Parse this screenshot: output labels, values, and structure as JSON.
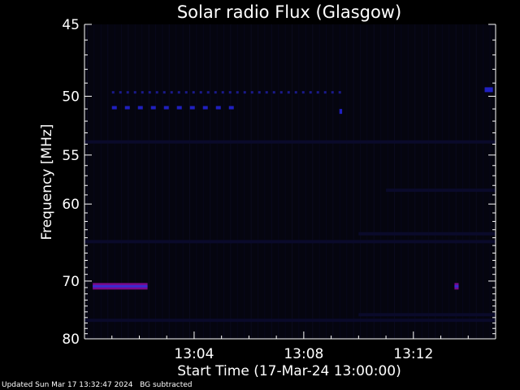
{
  "page": {
    "footer_updated": "Updated Sun Mar 17 13:32:47 2024",
    "footer_note": "BG subtracted"
  },
  "chart_data": {
    "type": "heatmap",
    "title": "Solar radio Flux (Glasgow)",
    "xlabel": "Start Time (17-Mar-24 13:00:00)",
    "ylabel": "Frequency [MHz]",
    "x_range_minutes": [
      0,
      15
    ],
    "x_ticks": [
      {
        "label": "13:04",
        "minute": 4
      },
      {
        "label": "13:08",
        "minute": 8
      },
      {
        "label": "13:12",
        "minute": 12
      }
    ],
    "ylim": [
      45,
      80
    ],
    "y_reversed": true,
    "y_scale": "reciprocal",
    "y_ticks": [
      45,
      50,
      55,
      60,
      70,
      80
    ],
    "colors": {
      "background": "#000000",
      "plot_bg": "#05050f",
      "faint_band": "#0a0a2a",
      "weak_signal": "#1a1a8a",
      "medium_signal": "#2020c0",
      "strong_signal": "#7a0a8a",
      "strong_core": "#3a2ad0",
      "axes": "#ffffff"
    },
    "features": [
      {
        "name": "dotted band",
        "freq_mhz": 49.7,
        "t_start_min": 1.0,
        "t_end_min": 9.5,
        "intensity": "weak",
        "style": "dotted"
      },
      {
        "name": "dotted band",
        "freq_mhz": 50.9,
        "t_start_min": 1.0,
        "t_end_min": 5.5,
        "intensity": "medium",
        "style": "dashed"
      },
      {
        "name": "spike",
        "freq_mhz": 51.2,
        "t_start_min": 9.3,
        "t_end_min": 9.4,
        "intensity": "medium",
        "style": "solid"
      },
      {
        "name": "edge spike",
        "freq_mhz": 49.5,
        "t_start_min": 14.6,
        "t_end_min": 14.9,
        "intensity": "medium",
        "style": "solid"
      },
      {
        "name": "faint band",
        "freq_mhz": 53.8,
        "t_start_min": 0.0,
        "t_end_min": 15.0,
        "intensity": "faint",
        "style": "band"
      },
      {
        "name": "faint band",
        "freq_mhz": 58.5,
        "t_start_min": 11.0,
        "t_end_min": 15.0,
        "intensity": "faint",
        "style": "band"
      },
      {
        "name": "faint band",
        "freq_mhz": 63.5,
        "t_start_min": 10.0,
        "t_end_min": 15.0,
        "intensity": "faint",
        "style": "band"
      },
      {
        "name": "faint band",
        "freq_mhz": 64.5,
        "t_start_min": 0.0,
        "t_end_min": 15.0,
        "intensity": "faint",
        "style": "band"
      },
      {
        "name": "interference",
        "freq_mhz": 70.8,
        "t_start_min": 0.3,
        "t_end_min": 2.3,
        "intensity": "strong",
        "style": "solid"
      },
      {
        "name": "interference spot",
        "freq_mhz": 70.8,
        "t_start_min": 13.5,
        "t_end_min": 13.65,
        "intensity": "strong",
        "style": "solid"
      },
      {
        "name": "faint band",
        "freq_mhz": 75.5,
        "t_start_min": 10.0,
        "t_end_min": 15.0,
        "intensity": "faint",
        "style": "band"
      },
      {
        "name": "faint band",
        "freq_mhz": 76.5,
        "t_start_min": 0.0,
        "t_end_min": 15.0,
        "intensity": "faint",
        "style": "band"
      }
    ]
  }
}
